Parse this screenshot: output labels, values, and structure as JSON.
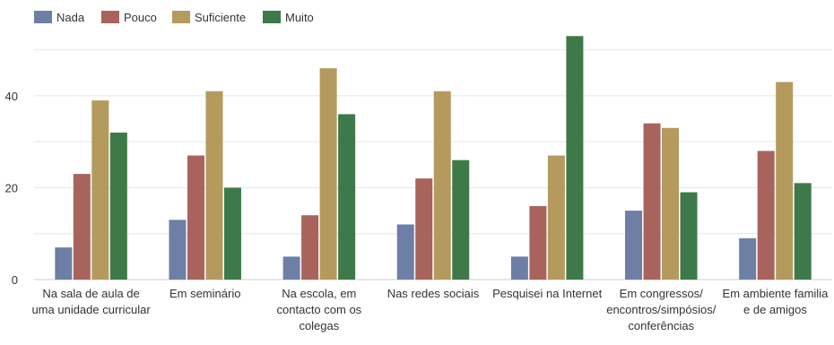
{
  "chart_data": {
    "type": "bar",
    "categories": [
      [
        "Na sala de aula de",
        "uma unidade curricular"
      ],
      [
        "Em seminário"
      ],
      [
        "Na escola, em",
        "contacto com os",
        "colegas"
      ],
      [
        "Nas redes sociais"
      ],
      [
        "Pesquisei na Internet"
      ],
      [
        "Em congressos/",
        "encontros/simpósios/",
        "conferências"
      ],
      [
        "Em ambiente familia",
        "e de amigos"
      ]
    ],
    "series": [
      {
        "name": "Nada",
        "color": "#6e7fa6",
        "values": [
          7,
          13,
          5,
          12,
          5,
          15,
          9
        ]
      },
      {
        "name": "Pouco",
        "color": "#a8645c",
        "values": [
          23,
          27,
          14,
          22,
          16,
          34,
          28
        ]
      },
      {
        "name": "Suficiente",
        "color": "#b59a5e",
        "values": [
          39,
          41,
          46,
          41,
          27,
          33,
          43
        ]
      },
      {
        "name": "Muito",
        "color": "#3e7a49",
        "values": [
          32,
          20,
          36,
          26,
          53,
          19,
          21
        ]
      }
    ],
    "yticks": [
      0,
      20,
      40
    ],
    "ylim": [
      0,
      55
    ],
    "grid": true,
    "legend_position": "top-left",
    "title": "",
    "xlabel": "",
    "ylabel": ""
  }
}
